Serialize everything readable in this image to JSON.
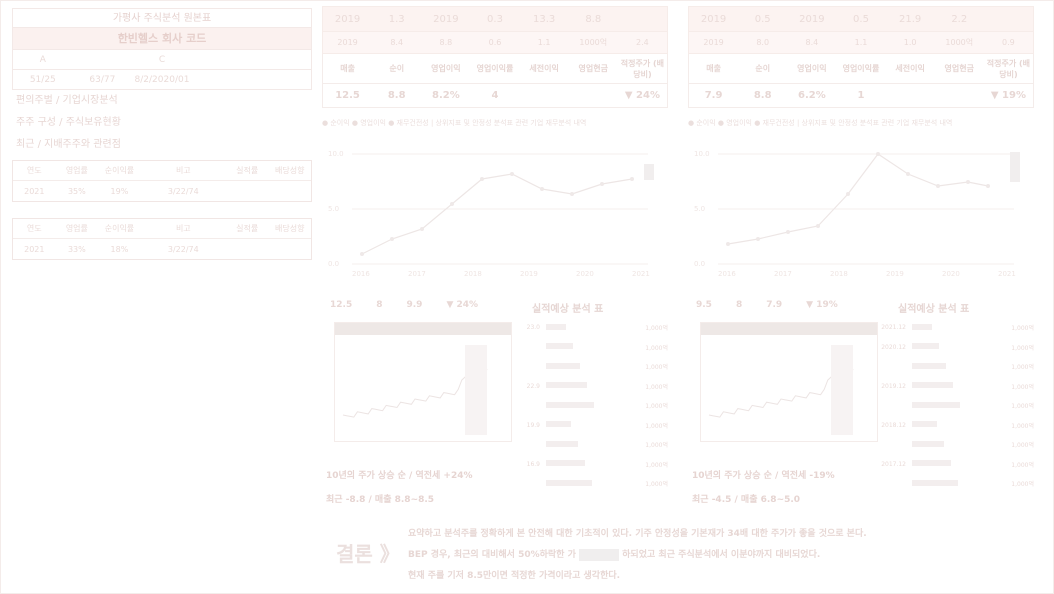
{
  "left_panel": {
    "title": "가평사 주식분석 원본표",
    "stock_name": "한빈헬스 회사 코드",
    "cols": [
      "A",
      "",
      "C",
      "",
      ""
    ],
    "vals": [
      "51/25",
      "63/77",
      "8/2/2020/01",
      "",
      ""
    ],
    "lines": [
      "편의주벌 / 기업시장분석",
      "주주 구성 / 주식보유현황",
      "최근 / 지배주주와 관련점"
    ],
    "table1": {
      "headers": [
        "연도",
        "영업률",
        "순이익률",
        "비고",
        "실적률",
        "배당성향"
      ],
      "values": [
        "2021",
        "35%",
        "19%",
        "3/22/74",
        "",
        ""
      ]
    },
    "table2": {
      "headers": [
        "연도",
        "영업률",
        "순이익률",
        "비고",
        "실적률",
        "배당성향"
      ],
      "values": [
        "2021",
        "33%",
        "18%",
        "3/22/74",
        "",
        ""
      ]
    }
  },
  "block1": {
    "topbar": [
      "2019",
      "1.3",
      "2019",
      "0.3",
      "13.3",
      "8.8",
      ""
    ],
    "subbar": [
      "2019",
      "8.4",
      "8.8",
      "0.6",
      "1.1",
      "1000억",
      "2.4"
    ],
    "headers": [
      "매출",
      "순이",
      "영업이익",
      "영업이익률",
      "세전이익",
      "영업현금",
      "적정주가 (배당비)"
    ],
    "values": [
      "12.5",
      "8.8",
      "8.2%",
      "4",
      "",
      "",
      "▼ 24%"
    ],
    "legend": "● 순이익  ● 영업이익  ● 재무건전성  |  상위지표 및 안정성 분석표 관련 기업 재무분석 내역",
    "y_ticks": [
      "10.0",
      "5.0",
      "0.0"
    ],
    "x_ticks": [
      "2016",
      "2017",
      "2018",
      "2019",
      "2020",
      "2021"
    ],
    "stats": [
      "12.5",
      "8",
      "9.9",
      "▼ 24%"
    ],
    "side_title": "실적예상 분석 표",
    "list": [
      {
        "a": "23.0",
        "b": "",
        "c": "1,000억"
      },
      {
        "a": "",
        "b": "",
        "c": "1,000억"
      },
      {
        "a": "",
        "b": "",
        "c": "1,000억"
      },
      {
        "a": "22.9",
        "b": "",
        "c": "1,000억"
      },
      {
        "a": "",
        "b": "",
        "c": "1,000억"
      },
      {
        "a": "19.9",
        "b": "",
        "c": "1,000억"
      },
      {
        "a": "",
        "b": "",
        "c": "1,000억"
      },
      {
        "a": "16.9",
        "b": "",
        "c": "1,000억"
      },
      {
        "a": "",
        "b": "",
        "c": "1,000억"
      }
    ],
    "caption": "10년의 주가 상승 순 / 역전세 +24%",
    "caption2": "최근 -8.8 / 매출 8.8~8.5"
  },
  "block2": {
    "topbar": [
      "2019",
      "0.5",
      "2019",
      "0.5",
      "21.9",
      "2.2",
      ""
    ],
    "subbar": [
      "2019",
      "8.0",
      "8.4",
      "1.1",
      "1.0",
      "1000억",
      "0.9"
    ],
    "headers": [
      "매출",
      "순이",
      "영업이익",
      "영업이익률",
      "세전이익",
      "영업현금",
      "적정주가 (배당비)"
    ],
    "values": [
      "7.9",
      "8.8",
      "6.2%",
      "1",
      "",
      "",
      "▼ 19%"
    ],
    "legend": "● 순이익  ● 영업이익  ● 재무건전성  |  상위지표 및 안정성 분석표 관련 기업 재무분석 내역",
    "y_ticks": [
      "10.0",
      "5.0",
      "0.0"
    ],
    "x_ticks": [
      "2016",
      "2017",
      "2018",
      "2019",
      "2020",
      "2021"
    ],
    "stats": [
      "9.5",
      "8",
      "7.9",
      "▼ 19%"
    ],
    "side_title": "실적예상 분석 표",
    "list": [
      {
        "a": "2021.12",
        "b": "",
        "c": "1,000억"
      },
      {
        "a": "2020.12",
        "b": "",
        "c": "1,000억"
      },
      {
        "a": "",
        "b": "",
        "c": "1,000억"
      },
      {
        "a": "2019.12",
        "b": "",
        "c": "1,000억"
      },
      {
        "a": "",
        "b": "",
        "c": "1,000억"
      },
      {
        "a": "2018.12",
        "b": "",
        "c": "1,000억"
      },
      {
        "a": "",
        "b": "",
        "c": "1,000억"
      },
      {
        "a": "2017.12",
        "b": "",
        "c": "1,000억"
      },
      {
        "a": "",
        "b": "",
        "c": "1,000억"
      }
    ],
    "caption": "10년의 주가 상승 순 / 역전세 -19%",
    "caption2": "최근 -4.5 / 매출 6.8~5.0"
  },
  "conclusion": {
    "title": "결론 》",
    "line1": "요약하고 분석주를 정확하게 본 안전해 대한 기초적이 있다. 기주 안정성을 기본재가 34배 대한 주가가 좋을 것으로 본다.",
    "line2a": "BEP 경우, 최근의 대비해서 50%하락한 가",
    "line2b": "하되었고 최근 주식분석에서 이분야까지 대비되었다.",
    "line3": "현재 주를 기저 8.5만이면 적정한 가격이라고 생각한다."
  }
}
